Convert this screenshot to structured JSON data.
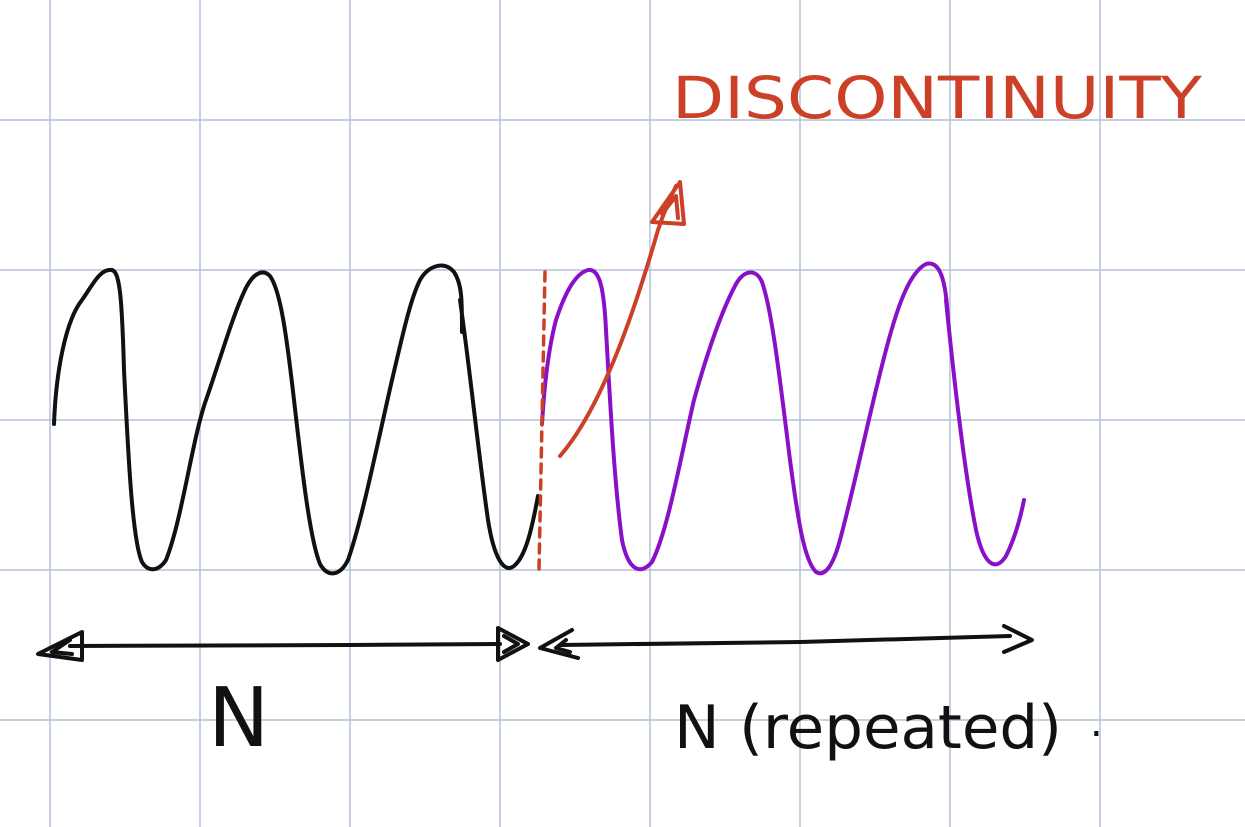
{
  "annotation": {
    "text": "DISCONTINUITY",
    "color": "#cc4028"
  },
  "labels": {
    "left_span": "N",
    "right_span": "N (repeated)",
    "trailing_dot": "."
  },
  "colors": {
    "grid": "#b3c0da",
    "original_wave": "#111111",
    "repeated_wave": "#8a10c8",
    "marker": "#cc4028",
    "ink": "#111111"
  }
}
